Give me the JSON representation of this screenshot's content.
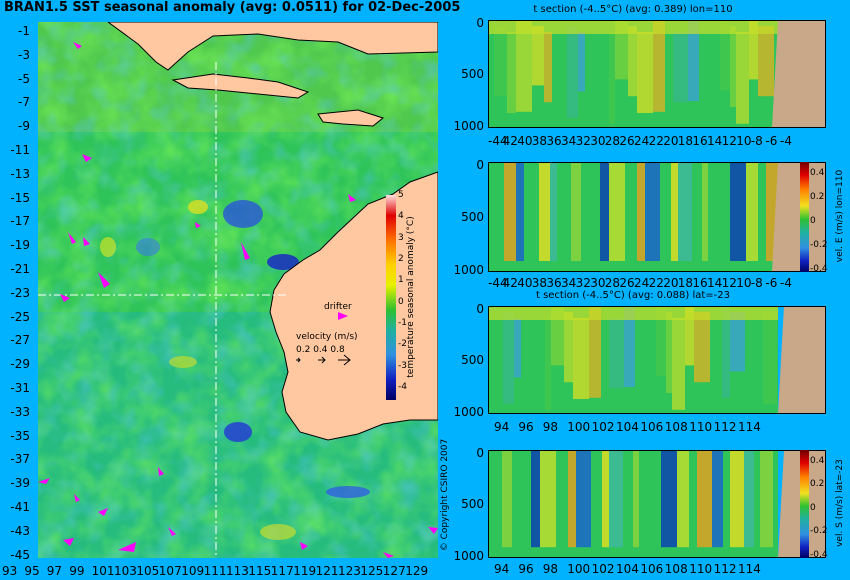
{
  "map": {
    "title": "BRAN1.5 SST seasonal anomaly (avg: 0.0511) for 02-Dec-2005",
    "lat_ticks": [
      "-1",
      "-3",
      "-5",
      "-7",
      "-9",
      "-11",
      "-13",
      "-15",
      "-17",
      "-19",
      "-21",
      "-23",
      "-25",
      "-27",
      "-29",
      "-31",
      "-33",
      "-35",
      "-37",
      "-39",
      "-41",
      "-43",
      "-45"
    ],
    "lon_ticks": [
      "93",
      "95",
      "97",
      "99",
      "101",
      "103",
      "105",
      "107",
      "109",
      "111",
      "113",
      "115",
      "117",
      "119",
      "121",
      "123",
      "125",
      "127",
      "129"
    ],
    "colorbar": {
      "label": "temperature seasonal anomaly (°C)",
      "ticks": [
        "5",
        "4",
        "3",
        "2",
        "1",
        "0",
        "-1",
        "-2",
        "-3",
        "-4"
      ],
      "range": [
        -4,
        5
      ]
    },
    "drifter_label": "drifter",
    "velocity_legend": {
      "title": "velocity (m/s)",
      "values": [
        "0.2",
        "0.4",
        "0.8"
      ]
    },
    "copyright": "© Copyright CSIRO 2007",
    "crosshair": {
      "lon": 110,
      "lat": -23
    },
    "colors": {
      "land": "#ffc8a0",
      "ocean_base": "#2fc45a",
      "drifter": "#ff00ff",
      "background": "#00b2ff"
    }
  },
  "panels": [
    {
      "title": "t section (-4..5°C) (avg: 0.389) lon=110",
      "depth_ticks": [
        "0",
        "500",
        "1000"
      ],
      "x_ticks": [
        "-44",
        "42",
        "40",
        "38",
        "36",
        "34",
        "32",
        "30",
        "28",
        "26",
        "24",
        "22",
        "20",
        "18",
        "16",
        "14",
        "12",
        "10",
        "-8",
        "-6",
        "-4"
      ],
      "colorbar_label": "",
      "colorbar_ticks": []
    },
    {
      "title": "",
      "depth_ticks": [
        "0",
        "500",
        "1000"
      ],
      "x_ticks": [
        "-44",
        "42",
        "40",
        "38",
        "36",
        "34",
        "32",
        "30",
        "28",
        "26",
        "24",
        "22",
        "20",
        "18",
        "16",
        "14",
        "12",
        "10",
        "-8",
        "-6",
        "-4"
      ],
      "colorbar_label": "vel. E (m/s) lon=110",
      "colorbar_ticks": [
        "0.4",
        "0.2",
        "0",
        "-0.2",
        "-0.4"
      ]
    },
    {
      "title": "t section (-4..5°C) (avg: 0.088) lat=-23",
      "depth_ticks": [
        "0",
        "500",
        "1000"
      ],
      "x_ticks": [
        "94",
        "96",
        "98",
        "100",
        "102",
        "104",
        "106",
        "108",
        "110",
        "112",
        "114"
      ],
      "colorbar_label": "",
      "colorbar_ticks": []
    },
    {
      "title": "",
      "depth_ticks": [
        "0",
        "500",
        "1000"
      ],
      "x_ticks": [
        "94",
        "96",
        "98",
        "100",
        "102",
        "104",
        "106",
        "108",
        "110",
        "112",
        "114"
      ],
      "colorbar_label": "vel. S (m/s) lat=-23",
      "colorbar_ticks": [
        "0.4",
        "0.2",
        "0",
        "-0.2",
        "-0.4"
      ]
    }
  ]
}
